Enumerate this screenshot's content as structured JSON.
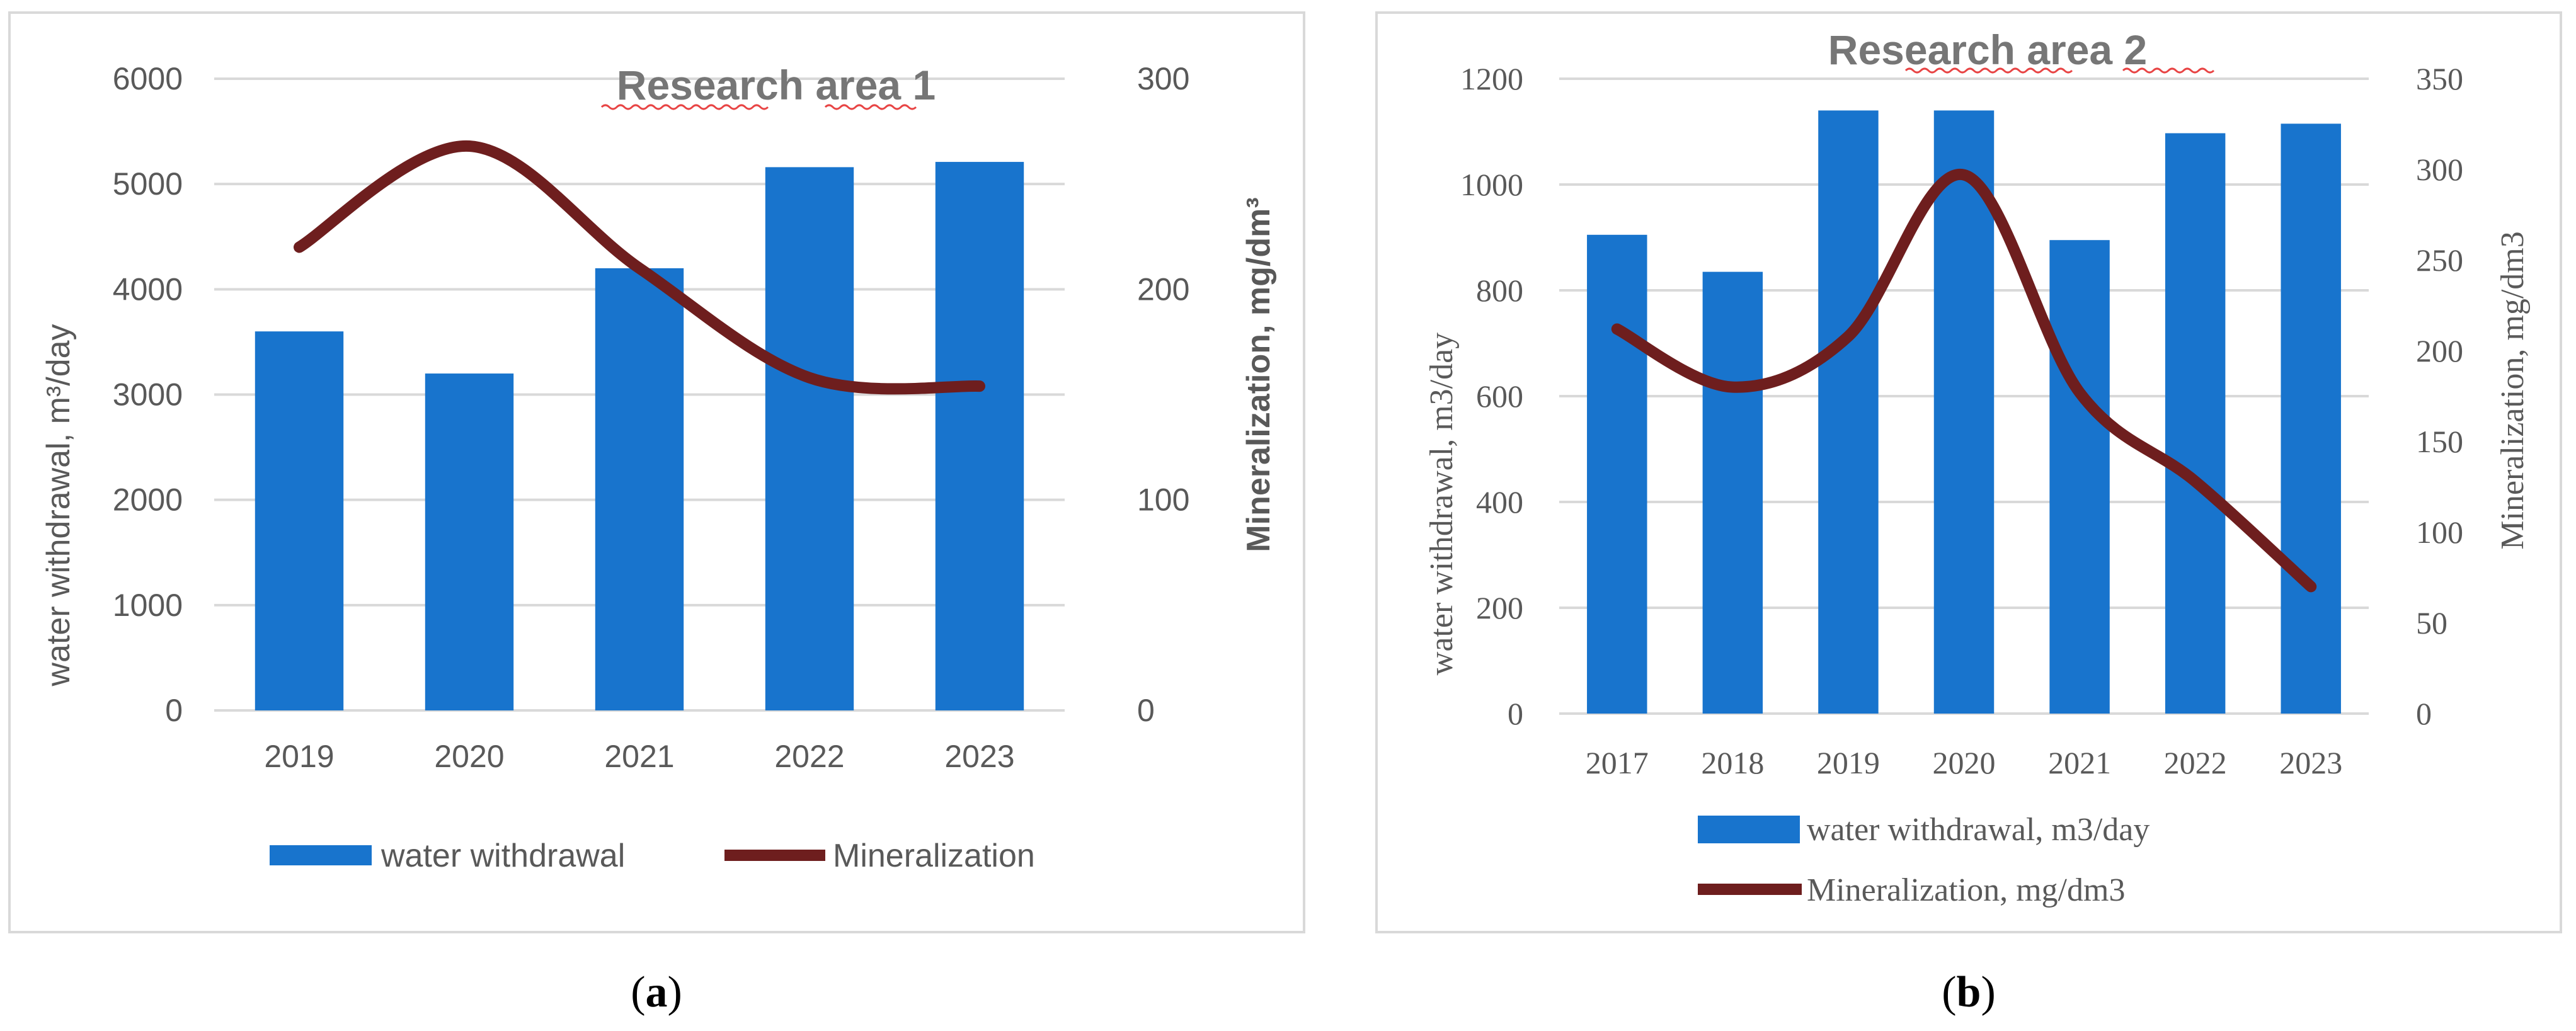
{
  "chart_data": [
    {
      "type": "bar+line",
      "title": "Research area 1",
      "title_num": "1",
      "title_word1": "Research",
      "title_word2": "area",
      "categories": [
        "2019",
        "2020",
        "2021",
        "2022",
        "2023"
      ],
      "series": [
        {
          "name": "water withdrawal",
          "type": "bar",
          "axis": "left",
          "color": "#1874cd",
          "values": [
            3600,
            3200,
            4200,
            5160,
            5210
          ]
        },
        {
          "name": "Mineralization",
          "type": "line",
          "axis": "right",
          "color": "#6e1e1e",
          "values": [
            220,
            268,
            210,
            158,
            154
          ]
        }
      ],
      "ylabel": "water withdrawal, m³/day",
      "y2label": "Mineralization, mg/dm³",
      "ylim": [
        0,
        6000
      ],
      "y2lim": [
        0,
        300
      ],
      "yticks": [
        "0",
        "1000",
        "2000",
        "3000",
        "4000",
        "5000",
        "6000"
      ],
      "y2ticks": [
        "0",
        "100",
        "200",
        "300"
      ],
      "legend": [
        "water withdrawal",
        "Mineralization"
      ],
      "legend_position": "bottom"
    },
    {
      "type": "bar+line",
      "title": "Research area  2",
      "title_num": "2",
      "title_word1": "Research",
      "title_word2": "area",
      "categories": [
        "2017",
        "2018",
        "2019",
        "2020",
        "2021",
        "2022",
        "2023"
      ],
      "series": [
        {
          "name": "water withdrawal, m3/day",
          "type": "bar",
          "axis": "left",
          "color": "#1874cd",
          "values": [
            905,
            835,
            1140,
            1140,
            895,
            1097,
            1115
          ]
        },
        {
          "name": "Mineralization, mg/dm3",
          "type": "line",
          "axis": "right",
          "color": "#6e1e1e",
          "values": [
            212,
            180,
            208,
            297,
            177,
            128,
            70
          ]
        }
      ],
      "ylabel": "water withdrawal, m3/day",
      "y2label": "Mineralization, mg/dm3",
      "ylim": [
        0,
        1200
      ],
      "y2lim": [
        0,
        350
      ],
      "yticks": [
        "0",
        "200",
        "400",
        "600",
        "800",
        "1000",
        "1200"
      ],
      "y2ticks": [
        "0",
        "50",
        "100",
        "150",
        "200",
        "250",
        "300",
        "350"
      ],
      "legend": [
        "water withdrawal, m3/day",
        "Mineralization, mg/dm3"
      ],
      "legend_position": "bottom"
    }
  ],
  "captions": {
    "a": {
      "open": "(",
      "letter": "a",
      "close": ")"
    },
    "b": {
      "open": "(",
      "letter": "b",
      "close": ")"
    }
  }
}
